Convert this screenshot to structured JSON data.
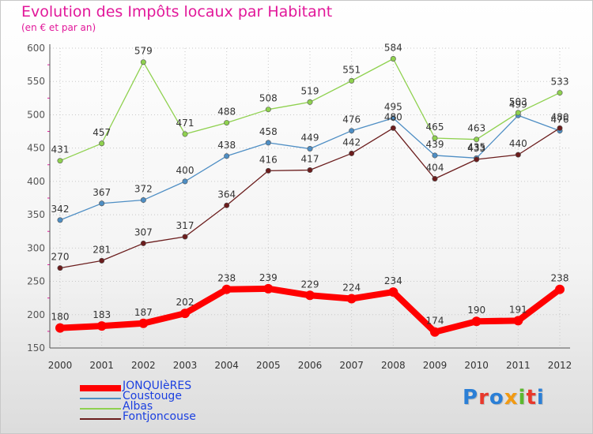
{
  "header": {
    "title": "Evolution des Impôts locaux par Habitant",
    "subtitle": "(en € et par an)"
  },
  "logo": {
    "text": "Proxiti",
    "letters": [
      "P",
      "r",
      "o",
      "x",
      "i",
      "t",
      "i"
    ],
    "colors": [
      "#2b7fd6",
      "#e8382c",
      "#2b7fd6",
      "#f29a12",
      "#5cb82e",
      "#e8382c",
      "#2b7fd6"
    ]
  },
  "chart_data": {
    "type": "line",
    "title": "Evolution des Impôts locaux par Habitant",
    "subtitle": "(en € et par an)",
    "xlabel": "",
    "ylabel": "",
    "ylim": [
      150,
      600
    ],
    "yticks": [
      150,
      200,
      250,
      300,
      350,
      400,
      450,
      500,
      550,
      600
    ],
    "categories": [
      "2000",
      "2001",
      "2002",
      "2003",
      "2004",
      "2005",
      "2006",
      "2007",
      "2008",
      "2009",
      "2010",
      "2011",
      "2012"
    ],
    "legend_position": "bottom-left",
    "grid": true,
    "series": [
      {
        "name": "JONQUIèRES",
        "color": "#ff0000",
        "values": [
          180,
          183,
          187,
          202,
          238,
          239,
          229,
          224,
          234,
          174,
          190,
          191,
          238
        ]
      },
      {
        "name": "Coustouge",
        "color": "#4e8ec4",
        "values": [
          342,
          367,
          372,
          400,
          438,
          458,
          449,
          476,
          495,
          439,
          435,
          499,
          476
        ]
      },
      {
        "name": "Albas",
        "color": "#8fd14f",
        "values": [
          431,
          457,
          579,
          471,
          488,
          508,
          519,
          551,
          584,
          465,
          463,
          503,
          533
        ]
      },
      {
        "name": "Fontjoncouse",
        "color": "#6b1d1d",
        "values": [
          270,
          281,
          307,
          317,
          364,
          416,
          417,
          442,
          480,
          404,
          433,
          440,
          480
        ]
      }
    ]
  }
}
